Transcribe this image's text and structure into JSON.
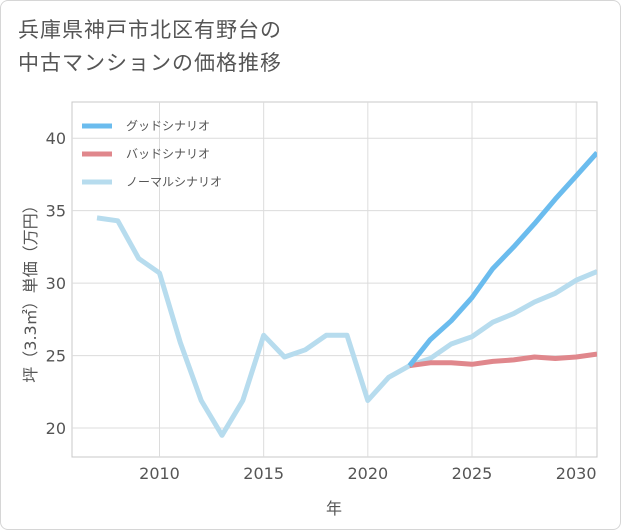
{
  "title": {
    "line1": "兵庫県神戸市北区有野台の",
    "line2": "中古マンションの価格推移"
  },
  "chart_data": {
    "type": "line",
    "title": "兵庫県神戸市北区有野台の中古マンションの価格推移",
    "xlabel": "年",
    "ylabel": "坪（3.3㎡）単価（万円）",
    "xlim": [
      2005.8,
      2031
    ],
    "ylim": [
      18,
      42.5
    ],
    "xticks": [
      2010,
      2015,
      2020,
      2025,
      2030
    ],
    "yticks": [
      20,
      25,
      30,
      35,
      40
    ],
    "grid": true,
    "legend_position": "top-left",
    "series": [
      {
        "name": "グッドシナリオ",
        "color": "#6bbcee",
        "x": [
          2022,
          2023,
          2024,
          2025,
          2026,
          2027,
          2028,
          2029,
          2030,
          2031
        ],
        "values": [
          24.3,
          26.1,
          27.4,
          29.0,
          31.0,
          32.5,
          34.1,
          35.8,
          37.4,
          39.0
        ]
      },
      {
        "name": "バッドシナリオ",
        "color": "#e0878c",
        "x": [
          2022,
          2023,
          2024,
          2025,
          2026,
          2027,
          2028,
          2029,
          2030,
          2031
        ],
        "values": [
          24.3,
          24.5,
          24.5,
          24.4,
          24.6,
          24.7,
          24.9,
          24.8,
          24.9,
          25.1
        ]
      },
      {
        "name": "ノーマルシナリオ",
        "color": "#b7dcee",
        "x": [
          2007,
          2008,
          2009,
          2010,
          2011,
          2012,
          2013,
          2014,
          2015,
          2016,
          2017,
          2018,
          2019,
          2020,
          2021,
          2022,
          2023,
          2024,
          2025,
          2026,
          2027,
          2028,
          2029,
          2030,
          2031
        ],
        "values": [
          34.5,
          34.3,
          31.7,
          30.7,
          25.9,
          21.9,
          19.5,
          21.9,
          26.4,
          24.9,
          25.4,
          26.4,
          26.4,
          21.9,
          23.5,
          24.3,
          24.8,
          25.8,
          26.3,
          27.3,
          27.9,
          28.7,
          29.3,
          30.2,
          30.8
        ]
      }
    ]
  }
}
